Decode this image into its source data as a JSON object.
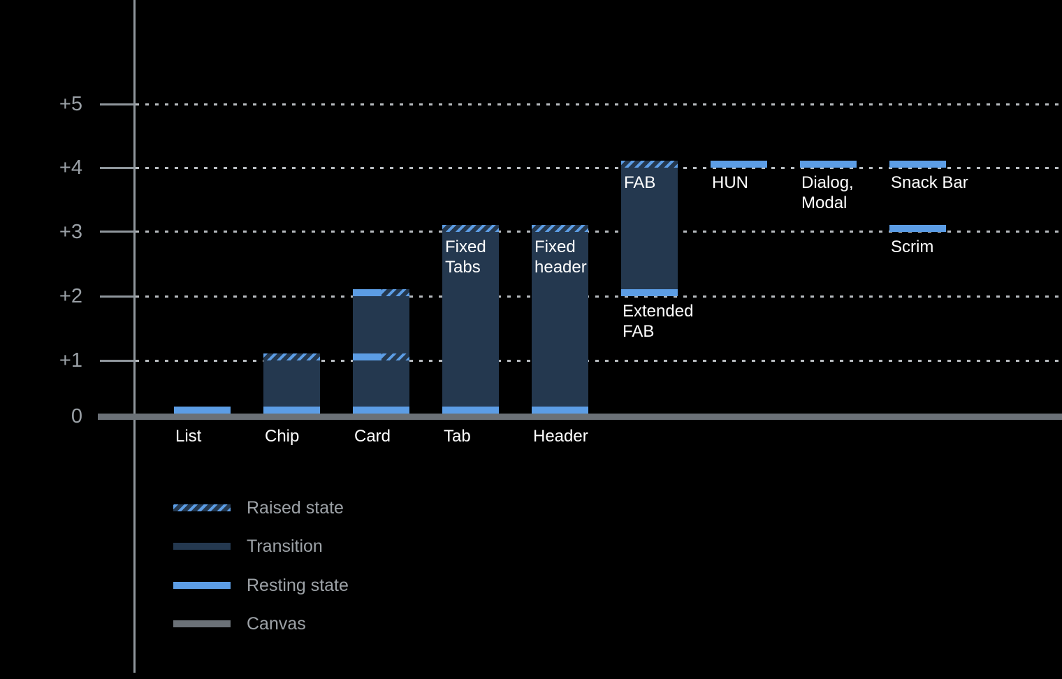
{
  "colors": {
    "background": "#000000",
    "resting": "#5C9DE5",
    "transition": "#24384F",
    "canvas": "#6B7177",
    "axis_line": "#8F969C",
    "grid_dots": "#B7BBBF",
    "axis_label": "#9AA0A6",
    "legend_text": "#9DA2A7",
    "bar_label": "#FFFFFF"
  },
  "chart_data": {
    "type": "bar",
    "title": "",
    "xlabel": "",
    "ylabel": "",
    "ylim": [
      0,
      5
    ],
    "grid": "dotted horizontal gridlines at +1 through +5",
    "legend_position": "bottom-left",
    "y_axis": {
      "tick_labels": [
        "+5",
        "+4",
        "+3",
        "+2",
        "+1",
        "0"
      ],
      "tick_values": [
        5,
        4,
        3,
        2,
        1,
        0
      ]
    },
    "elevation_values": {
      "List": {
        "resting": 0
      },
      "Chip": {
        "resting": 0,
        "raised": 1
      },
      "Card": {
        "resting": 0,
        "raised": [
          1,
          2
        ]
      },
      "Tab (Fixed Tabs)": {
        "resting": 0,
        "raised": 3
      },
      "Header (Fixed header)": {
        "resting": 0,
        "raised": 3
      },
      "Extended FAB / FAB": {
        "resting": 2,
        "raised": 4
      },
      "HUN": {
        "resting": 4
      },
      "Dialog, Modal": {
        "resting": 4
      },
      "Snack Bar": {
        "resting": 4
      },
      "Scrim": {
        "resting": 3
      }
    },
    "components": [
      {
        "name": "list",
        "col": 0,
        "below_label": [
          "List"
        ],
        "segments": [
          {
            "kind": "resting",
            "level": 0
          }
        ]
      },
      {
        "name": "chip",
        "col": 1,
        "below_label": [
          "Chip"
        ],
        "segments": [
          {
            "kind": "resting",
            "level": 0
          },
          {
            "kind": "transition",
            "from": 0,
            "to": 1
          },
          {
            "kind": "raised",
            "level": 1
          }
        ]
      },
      {
        "name": "card",
        "col": 2,
        "below_label": [
          "Card"
        ],
        "segments": [
          {
            "kind": "resting",
            "level": 0
          },
          {
            "kind": "transition",
            "from": 0,
            "to": 1
          },
          {
            "kind": "split",
            "level": 1
          },
          {
            "kind": "transition",
            "from": 1,
            "to": 2
          },
          {
            "kind": "split",
            "level": 2
          }
        ]
      },
      {
        "name": "tab",
        "col": 3,
        "below_label": [
          "Tab"
        ],
        "inner_label": [
          "Fixed",
          "Tabs"
        ],
        "inner_label_level": 3,
        "segments": [
          {
            "kind": "resting",
            "level": 0
          },
          {
            "kind": "transition",
            "from": 0,
            "to": 3
          },
          {
            "kind": "raised",
            "level": 3
          }
        ]
      },
      {
        "name": "header",
        "col": 4,
        "below_label": [
          "Header"
        ],
        "inner_label": [
          "Fixed",
          "header"
        ],
        "inner_label_level": 3,
        "segments": [
          {
            "kind": "resting",
            "level": 0
          },
          {
            "kind": "transition",
            "from": 0,
            "to": 3
          },
          {
            "kind": "raised",
            "level": 3
          }
        ]
      },
      {
        "name": "fab",
        "col": 5,
        "inner_label": [
          "FAB"
        ],
        "inner_label_level": 4,
        "under_label": [
          "Extended",
          "FAB"
        ],
        "under_label_level": 2,
        "segments": [
          {
            "kind": "resting",
            "level": 2
          },
          {
            "kind": "transition",
            "from": 2,
            "to": 4
          },
          {
            "kind": "raised",
            "level": 4
          }
        ]
      },
      {
        "name": "hun",
        "col": 6,
        "under_label": [
          "HUN"
        ],
        "under_label_level": 4,
        "segments": [
          {
            "kind": "resting",
            "level": 4
          }
        ]
      },
      {
        "name": "dialog-modal",
        "col": 7,
        "under_label": [
          "Dialog,",
          "Modal"
        ],
        "under_label_level": 4,
        "segments": [
          {
            "kind": "resting",
            "level": 4
          }
        ]
      },
      {
        "name": "snack-bar",
        "col": 8,
        "under_label": [
          "Snack Bar"
        ],
        "under_label_level": 4,
        "segments": [
          {
            "kind": "resting",
            "level": 4
          }
        ]
      },
      {
        "name": "scrim",
        "col": 8,
        "under_label": [
          "Scrim"
        ],
        "under_label_level": 3,
        "segments": [
          {
            "kind": "resting",
            "level": 3
          }
        ]
      }
    ],
    "legend": [
      {
        "key": "raised",
        "label": "Raised state"
      },
      {
        "key": "transition",
        "label": "Transition"
      },
      {
        "key": "resting",
        "label": "Resting state"
      },
      {
        "key": "canvas",
        "label": "Canvas"
      }
    ]
  }
}
